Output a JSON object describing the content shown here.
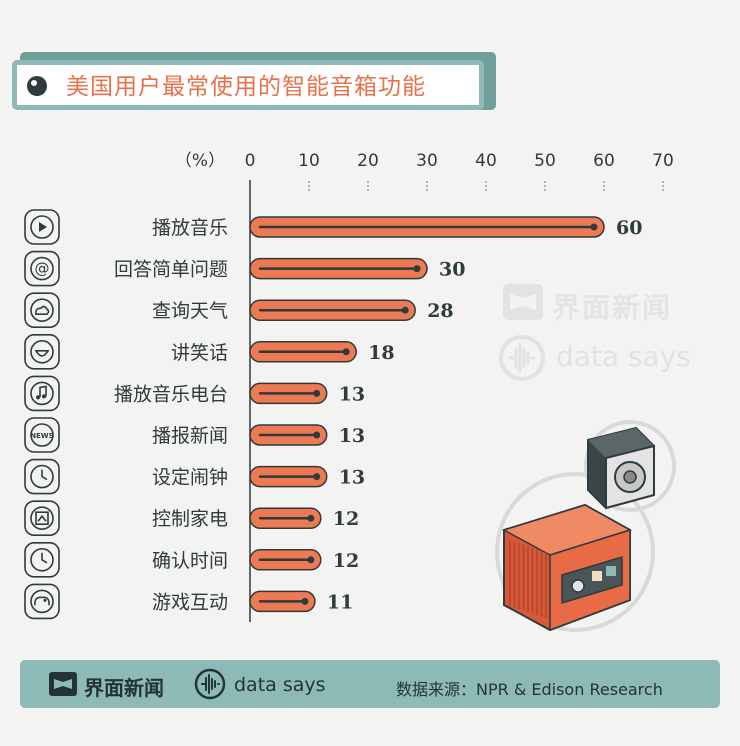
{
  "title": "美国用户最常使用的智能音箱功能",
  "watermark": {
    "brand": "界面新闻",
    "sub": "data says"
  },
  "footer": {
    "brand": "界面新闻",
    "sub": "data says",
    "source": "数据来源：NPR & Edison Research"
  },
  "colors": {
    "bar": "#ed7a52",
    "bar_track": "#2f3b3e",
    "accent": "#e8714a",
    "teal": "#8dbab7"
  },
  "chart_data": {
    "type": "bar",
    "orientation": "horizontal",
    "unit_label": "（%）",
    "xlim": [
      0,
      70
    ],
    "x_ticks": [
      "0",
      "10",
      "20",
      "30",
      "40",
      "50",
      "60",
      "70"
    ],
    "categories": [
      "播放音乐",
      "回答简单问题",
      "查询天气",
      "讲笑话",
      "播放音乐电台",
      "播报新闻",
      "设定闹钟",
      "控制家电",
      "确认时间",
      "游戏互动"
    ],
    "values": [
      60,
      30,
      28,
      18,
      13,
      13,
      13,
      12,
      12,
      11
    ],
    "icons": [
      "play-icon",
      "at-icon",
      "weather-icon",
      "smile-icon",
      "music-note-icon",
      "news-icon",
      "clock-icon",
      "home-control-icon",
      "clock-icon",
      "gamepad-icon"
    ]
  }
}
